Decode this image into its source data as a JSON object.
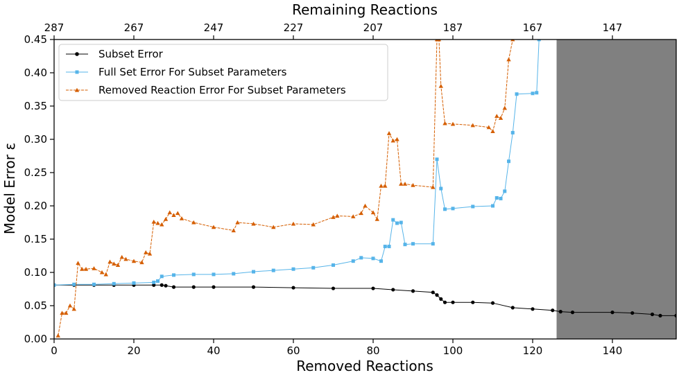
{
  "chart_data": {
    "type": "line",
    "xlabel": "Removed Reactions",
    "ylabel": "Model Error ε",
    "top_xlabel": "Remaining Reactions",
    "xlim": [
      0,
      156
    ],
    "ylim": [
      0.0,
      0.45
    ],
    "x_ticks": [
      0,
      20,
      40,
      60,
      80,
      100,
      120,
      140
    ],
    "y_ticks": [
      "0.00",
      "0.05",
      "0.10",
      "0.15",
      "0.20",
      "0.25",
      "0.30",
      "0.35",
      "0.40",
      "0.45"
    ],
    "top_ticks": [
      287,
      267,
      247,
      227,
      207,
      187,
      167,
      147
    ],
    "shaded_region": {
      "from": 126,
      "to": 156,
      "color": "#808080"
    },
    "grid": false,
    "legend_position": "top-left",
    "series": [
      {
        "name": "Subset Error",
        "color": "#000000",
        "marker": "circle",
        "x": [
          0,
          5,
          10,
          15,
          20,
          25,
          27,
          28,
          30,
          35,
          40,
          50,
          60,
          70,
          80,
          85,
          90,
          95,
          96,
          97,
          98,
          100,
          105,
          110,
          115,
          120,
          125,
          127,
          130,
          140,
          145,
          150,
          152,
          156
        ],
        "y": [
          0.081,
          0.081,
          0.081,
          0.081,
          0.081,
          0.081,
          0.081,
          0.08,
          0.078,
          0.078,
          0.078,
          0.078,
          0.077,
          0.076,
          0.076,
          0.074,
          0.072,
          0.07,
          0.066,
          0.06,
          0.055,
          0.055,
          0.055,
          0.054,
          0.047,
          0.045,
          0.043,
          0.041,
          0.04,
          0.04,
          0.039,
          0.037,
          0.035,
          0.035
        ]
      },
      {
        "name": "Full Set Error For Subset Parameters",
        "color": "#56b4e9",
        "marker": "square",
        "x": [
          0,
          5,
          10,
          15,
          20,
          25,
          26,
          27,
          30,
          35,
          40,
          45,
          50,
          55,
          60,
          65,
          70,
          75,
          77,
          80,
          82,
          83,
          84,
          85,
          86,
          87,
          88,
          90,
          95,
          96,
          97,
          98,
          100,
          105,
          110,
          111,
          112,
          113,
          114,
          115,
          116,
          120,
          121,
          121.6
        ],
        "y": [
          0.081,
          0.082,
          0.082,
          0.083,
          0.084,
          0.085,
          0.087,
          0.094,
          0.096,
          0.097,
          0.097,
          0.098,
          0.101,
          0.103,
          0.105,
          0.107,
          0.111,
          0.117,
          0.122,
          0.121,
          0.117,
          0.139,
          0.139,
          0.179,
          0.174,
          0.175,
          0.142,
          0.143,
          0.143,
          0.27,
          0.226,
          0.195,
          0.196,
          0.199,
          0.2,
          0.212,
          0.211,
          0.222,
          0.267,
          0.31,
          0.368,
          0.369,
          0.37,
          0.45
        ]
      },
      {
        "name": "Removed Reaction Error For Subset Parameters",
        "color": "#d55e00",
        "marker": "triangle",
        "x": [
          1,
          2,
          3,
          4,
          5,
          6,
          7,
          8,
          10,
          12,
          13,
          14,
          15,
          16,
          17,
          18,
          20,
          22,
          23,
          24,
          25,
          26,
          27,
          28,
          29,
          30,
          31,
          32,
          35,
          40,
          45,
          46,
          50,
          55,
          60,
          65,
          70,
          71,
          75,
          77,
          78,
          80,
          81,
          82,
          83,
          84,
          85,
          86,
          87,
          88,
          90,
          95,
          96,
          96.5,
          97,
          98,
          100,
          105,
          109,
          110,
          111,
          112,
          113,
          114,
          115
        ],
        "y": [
          0.005,
          0.039,
          0.039,
          0.05,
          0.045,
          0.114,
          0.105,
          0.105,
          0.106,
          0.1,
          0.097,
          0.116,
          0.113,
          0.111,
          0.123,
          0.12,
          0.117,
          0.115,
          0.13,
          0.128,
          0.176,
          0.174,
          0.172,
          0.18,
          0.19,
          0.186,
          0.189,
          0.181,
          0.175,
          0.168,
          0.163,
          0.175,
          0.173,
          0.168,
          0.173,
          0.172,
          0.183,
          0.185,
          0.184,
          0.189,
          0.2,
          0.19,
          0.18,
          0.23,
          0.23,
          0.309,
          0.298,
          0.3,
          0.233,
          0.233,
          0.231,
          0.228,
          0.45,
          0.45,
          0.38,
          0.324,
          0.323,
          0.321,
          0.318,
          0.312,
          0.335,
          0.332,
          0.347,
          0.42,
          0.45
        ]
      }
    ]
  }
}
